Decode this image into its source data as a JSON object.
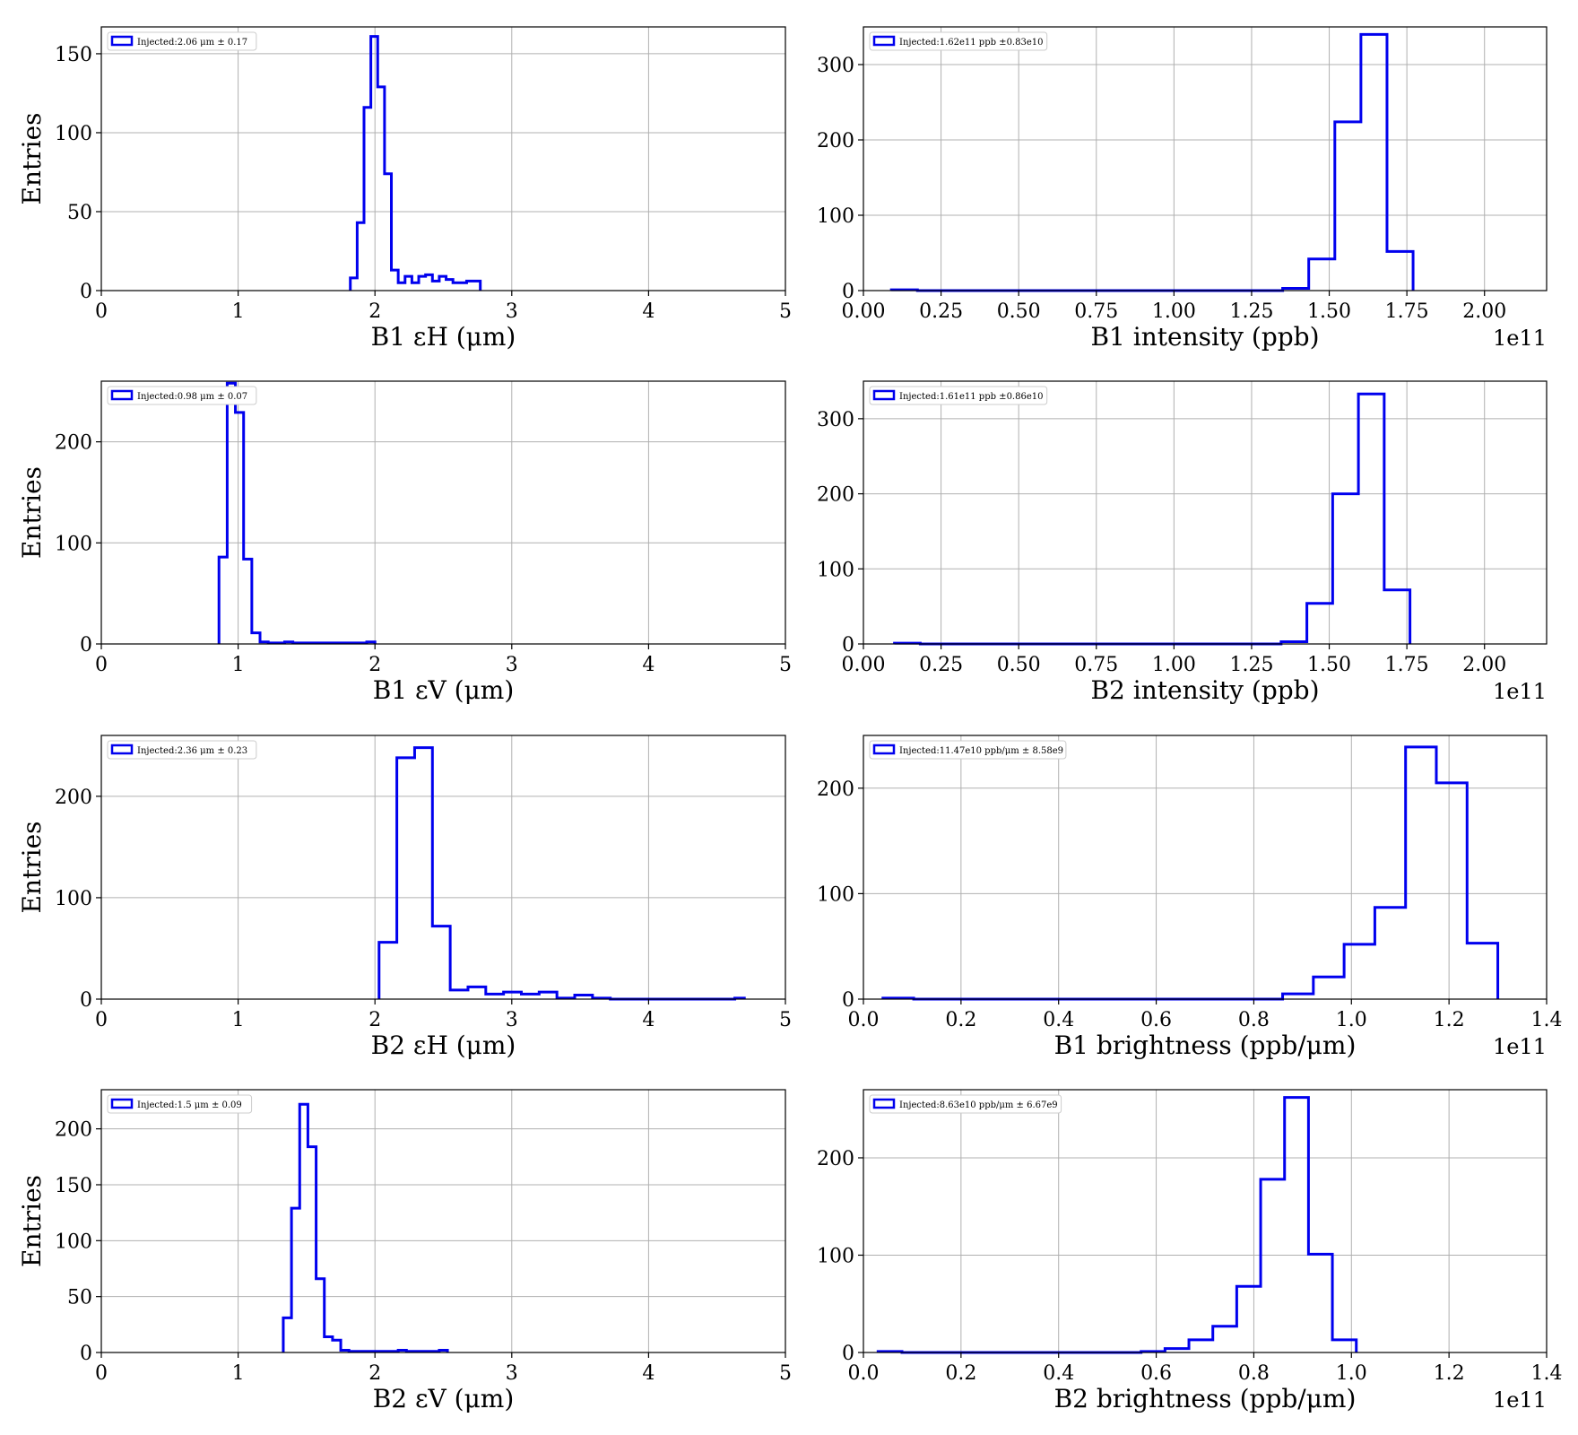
{
  "figure": {
    "background": "#ffffff",
    "line_color": "#0000ee",
    "grid_color": "#b0b0b0"
  },
  "chart_data": [
    {
      "id": "b1-eh",
      "type": "histogram",
      "xlabel": "B1 εH (μm)",
      "ylabel": "Entries",
      "xlim": [
        0,
        5
      ],
      "ylim": [
        0,
        167
      ],
      "xticks": [
        0,
        1,
        2,
        3,
        4,
        5
      ],
      "xtick_labels": [
        "0",
        "1",
        "2",
        "3",
        "4",
        "5"
      ],
      "yticks": [
        0,
        50,
        100,
        150
      ],
      "ytick_labels": [
        "0",
        "50",
        "100",
        "150"
      ],
      "x_offset_label": "",
      "legend": "Injected:2.06 μm ± 0.17",
      "bin_edges": [
        1.82,
        1.87,
        1.92,
        1.97,
        2.02,
        2.07,
        2.12,
        2.17,
        2.22,
        2.27,
        2.32,
        2.37,
        2.42,
        2.47,
        2.52,
        2.57,
        2.62,
        2.67,
        2.72,
        2.77
      ],
      "counts": [
        8,
        43,
        116,
        161,
        129,
        74,
        13,
        5,
        9,
        5,
        9,
        10,
        6,
        9,
        7,
        5,
        5,
        6,
        6
      ]
    },
    {
      "id": "b1-intensity",
      "type": "histogram",
      "xlabel": "B1 intensity (ppb)",
      "ylabel": "",
      "xlim": [
        0,
        2.2
      ],
      "ylim": [
        0,
        350
      ],
      "xticks": [
        0,
        0.25,
        0.5,
        0.75,
        1.0,
        1.25,
        1.5,
        1.75,
        2.0
      ],
      "xtick_labels": [
        "0.00",
        "0.25",
        "0.50",
        "0.75",
        "1.00",
        "1.25",
        "1.50",
        "1.75",
        "2.00"
      ],
      "yticks": [
        0,
        100,
        200,
        300
      ],
      "ytick_labels": [
        "0",
        "100",
        "200",
        "300"
      ],
      "x_offset_label": "1e11",
      "legend": "Injected:1.62e11 ppb ±0.83e10",
      "bin_edges": [
        0.09,
        0.174,
        0.258,
        0.342,
        0.426,
        0.51,
        0.594,
        0.678,
        0.762,
        0.846,
        0.93,
        1.014,
        1.098,
        1.182,
        1.266,
        1.35,
        1.434,
        1.518,
        1.602,
        1.686,
        1.77
      ],
      "counts": [
        1,
        0,
        0,
        0,
        0,
        0,
        0,
        0,
        0,
        0,
        0,
        0,
        0,
        0,
        0,
        3,
        42,
        224,
        340,
        52
      ]
    },
    {
      "id": "b1-ev",
      "type": "histogram",
      "xlabel": "B1 εV (μm)",
      "ylabel": "Entries",
      "xlim": [
        0,
        5
      ],
      "ylim": [
        0,
        260
      ],
      "xticks": [
        0,
        1,
        2,
        3,
        4,
        5
      ],
      "xtick_labels": [
        "0",
        "1",
        "2",
        "3",
        "4",
        "5"
      ],
      "yticks": [
        0,
        100,
        200
      ],
      "ytick_labels": [
        "0",
        "100",
        "200"
      ],
      "x_offset_label": "",
      "legend": "Injected:0.98 μm ± 0.07",
      "bin_edges": [
        0.86,
        0.92,
        0.98,
        1.04,
        1.1,
        1.16,
        1.22,
        1.28,
        1.34,
        1.4,
        1.46,
        1.52,
        1.58,
        1.64,
        1.7,
        1.76,
        1.82,
        1.88,
        1.94,
        2.0
      ],
      "counts": [
        86,
        258,
        229,
        84,
        11,
        2,
        1,
        1,
        2,
        1,
        1,
        1,
        1,
        1,
        1,
        1,
        1,
        1,
        2
      ]
    },
    {
      "id": "b2-intensity",
      "type": "histogram",
      "xlabel": "B2 intensity (ppb)",
      "ylabel": "",
      "xlim": [
        0,
        2.2
      ],
      "ylim": [
        0,
        350
      ],
      "xticks": [
        0,
        0.25,
        0.5,
        0.75,
        1.0,
        1.25,
        1.5,
        1.75,
        2.0
      ],
      "xtick_labels": [
        "0.00",
        "0.25",
        "0.50",
        "0.75",
        "1.00",
        "1.25",
        "1.50",
        "1.75",
        "2.00"
      ],
      "yticks": [
        0,
        100,
        200,
        300
      ],
      "ytick_labels": [
        "0",
        "100",
        "200",
        "300"
      ],
      "x_offset_label": "1e11",
      "legend": "Injected:1.61e11 ppb ±0.86e10",
      "bin_edges": [
        0.1,
        0.183,
        0.266,
        0.349,
        0.432,
        0.515,
        0.598,
        0.681,
        0.764,
        0.847,
        0.93,
        1.013,
        1.096,
        1.179,
        1.262,
        1.345,
        1.428,
        1.511,
        1.594,
        1.677,
        1.76
      ],
      "counts": [
        1,
        0,
        0,
        0,
        0,
        0,
        0,
        0,
        0,
        0,
        0,
        0,
        0,
        0,
        0,
        3,
        54,
        200,
        333,
        72
      ]
    },
    {
      "id": "b2-eh",
      "type": "histogram",
      "xlabel": "B2 εH (μm)",
      "ylabel": "Entries",
      "xlim": [
        0,
        5
      ],
      "ylim": [
        0,
        260
      ],
      "xticks": [
        0,
        1,
        2,
        3,
        4,
        5
      ],
      "xtick_labels": [
        "0",
        "1",
        "2",
        "3",
        "4",
        "5"
      ],
      "yticks": [
        0,
        100,
        200
      ],
      "ytick_labels": [
        "0",
        "100",
        "200"
      ],
      "x_offset_label": "",
      "legend": "Injected:2.36 μm ± 0.23",
      "bin_edges": [
        2.03,
        2.16,
        2.29,
        2.42,
        2.55,
        2.68,
        2.81,
        2.94,
        3.07,
        3.2,
        3.33,
        3.46,
        3.59,
        3.72,
        3.85,
        3.98,
        4.11,
        4.24,
        4.37,
        4.5,
        4.63,
        4.7
      ],
      "counts": [
        56,
        238,
        248,
        72,
        9,
        12,
        5,
        7,
        5,
        7,
        1,
        4,
        1,
        0,
        0,
        0,
        0,
        0,
        0,
        0,
        1
      ]
    },
    {
      "id": "b1-brightness",
      "type": "histogram",
      "xlabel": "B1 brightness (ppb/μm)",
      "ylabel": "",
      "xlim": [
        0,
        1.4
      ],
      "ylim": [
        0,
        250
      ],
      "xticks": [
        0,
        0.2,
        0.4,
        0.6,
        0.8,
        1.0,
        1.2,
        1.4
      ],
      "xtick_labels": [
        "0.0",
        "0.2",
        "0.4",
        "0.6",
        "0.8",
        "1.0",
        "1.2",
        "1.4"
      ],
      "yticks": [
        0,
        100,
        200
      ],
      "ytick_labels": [
        "0",
        "100",
        "200"
      ],
      "x_offset_label": "1e11",
      "legend": "Injected:11.47e10 ppb/μm ± 8.58e9",
      "bin_edges": [
        0.04,
        0.103,
        0.166,
        0.229,
        0.292,
        0.355,
        0.418,
        0.481,
        0.544,
        0.607,
        0.67,
        0.733,
        0.796,
        0.859,
        0.922,
        0.985,
        1.048,
        1.111,
        1.174,
        1.237,
        1.3
      ],
      "counts": [
        1,
        0,
        0,
        0,
        0,
        0,
        0,
        0,
        0,
        0,
        0,
        0,
        0,
        5,
        21,
        52,
        87,
        239,
        205,
        53
      ]
    },
    {
      "id": "b2-ev",
      "type": "histogram",
      "xlabel": "B2 εV (μm)",
      "ylabel": "Entries",
      "xlim": [
        0,
        5
      ],
      "ylim": [
        0,
        235
      ],
      "xticks": [
        0,
        1,
        2,
        3,
        4,
        5
      ],
      "xtick_labels": [
        "0",
        "1",
        "2",
        "3",
        "4",
        "5"
      ],
      "yticks": [
        0,
        50,
        100,
        150,
        200
      ],
      "ytick_labels": [
        "0",
        "50",
        "100",
        "150",
        "200"
      ],
      "x_offset_label": "",
      "legend": "Injected:1.5 μm ± 0.09",
      "bin_edges": [
        1.33,
        1.39,
        1.45,
        1.51,
        1.57,
        1.63,
        1.69,
        1.75,
        1.81,
        1.87,
        1.93,
        1.99,
        2.05,
        2.11,
        2.17,
        2.23,
        2.29,
        2.35,
        2.41,
        2.47,
        2.53
      ],
      "counts": [
        31,
        129,
        222,
        184,
        66,
        14,
        11,
        2,
        1,
        1,
        1,
        1,
        1,
        1,
        2,
        1,
        1,
        1,
        1,
        2
      ]
    },
    {
      "id": "b2-brightness",
      "type": "histogram",
      "xlabel": "B2 brightness (ppb/μm)",
      "ylabel": "",
      "xlim": [
        0,
        1.4
      ],
      "ylim": [
        0,
        270
      ],
      "xticks": [
        0,
        0.2,
        0.4,
        0.6,
        0.8,
        1.0,
        1.2,
        1.4
      ],
      "xtick_labels": [
        "0.0",
        "0.2",
        "0.4",
        "0.6",
        "0.8",
        "1.0",
        "1.2",
        "1.4"
      ],
      "yticks": [
        0,
        100,
        200
      ],
      "ytick_labels": [
        "0",
        "100",
        "200"
      ],
      "x_offset_label": "1e11",
      "legend": "Injected:8.63e10 ppb/μm ± 6.67e9",
      "bin_edges": [
        0.03,
        0.079,
        0.128,
        0.177,
        0.226,
        0.275,
        0.324,
        0.373,
        0.422,
        0.471,
        0.52,
        0.569,
        0.618,
        0.667,
        0.716,
        0.765,
        0.814,
        0.863,
        0.912,
        0.961,
        1.01
      ],
      "counts": [
        1,
        0,
        0,
        0,
        0,
        0,
        0,
        0,
        0,
        0,
        0,
        1,
        4,
        13,
        27,
        68,
        178,
        262,
        101,
        13
      ]
    }
  ]
}
